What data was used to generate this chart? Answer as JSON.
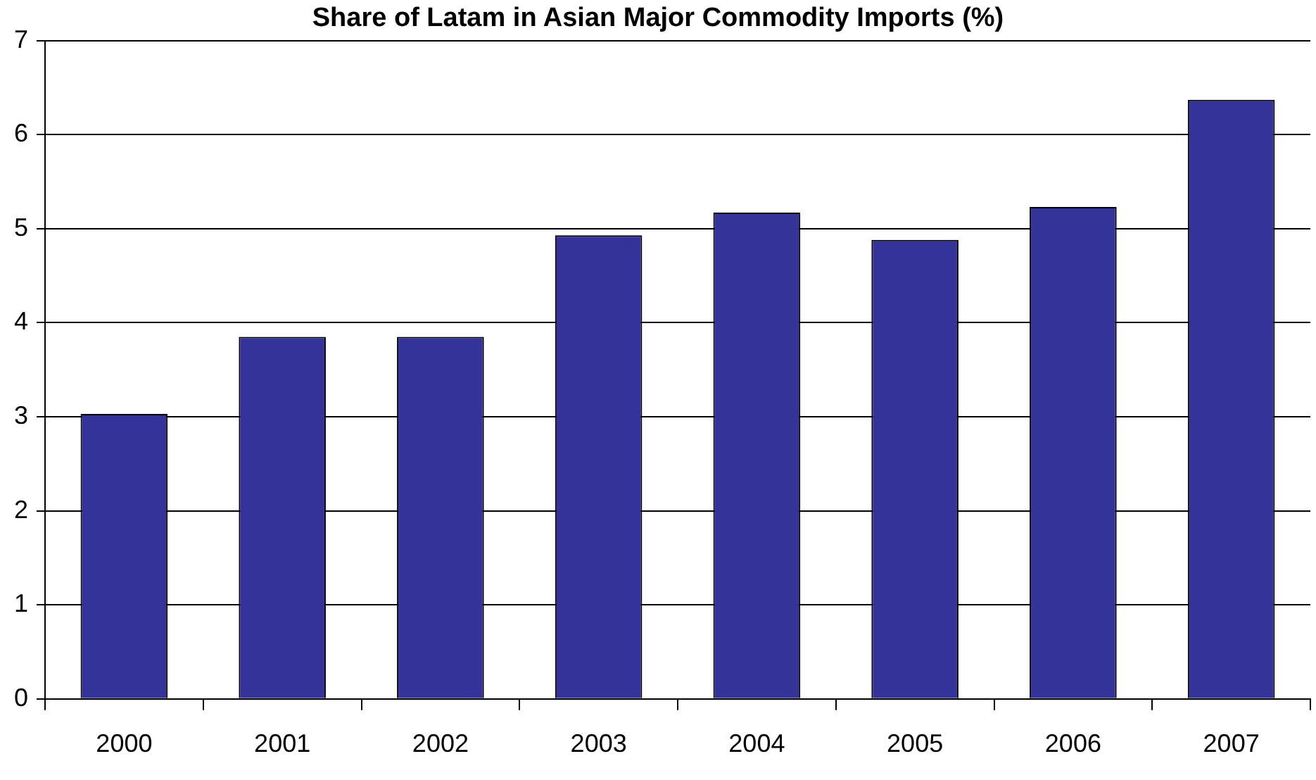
{
  "chart_data": {
    "type": "bar",
    "title": "Share of Latam in Asian Major Commodity Imports (%)",
    "categories": [
      "2000",
      "2001",
      "2002",
      "2003",
      "2004",
      "2005",
      "2006",
      "2007"
    ],
    "values": [
      3.03,
      3.85,
      3.85,
      4.93,
      5.17,
      4.88,
      5.23,
      6.37
    ],
    "color": "#333399",
    "ylim": [
      0,
      7
    ],
    "yticks": [
      0,
      1,
      2,
      3,
      4,
      5,
      6,
      7
    ],
    "grid": "y"
  }
}
